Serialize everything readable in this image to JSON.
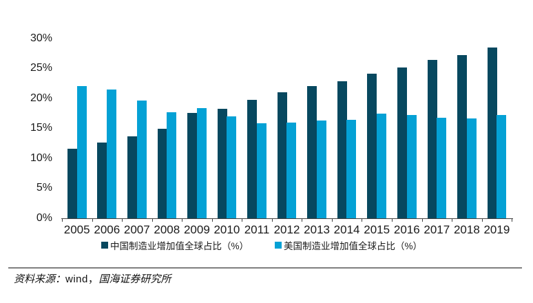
{
  "chart_data": {
    "type": "bar",
    "title": "",
    "categories": [
      "2005",
      "2006",
      "2007",
      "2008",
      "2009",
      "2010",
      "2011",
      "2012",
      "2013",
      "2014",
      "2015",
      "2016",
      "2017",
      "2018",
      "2019"
    ],
    "series": [
      {
        "name": "中国制造业增加值全球占比（%）",
        "color": "#07485f",
        "values": [
          11.6,
          12.6,
          13.7,
          14.9,
          17.6,
          18.3,
          19.7,
          21.0,
          22.0,
          22.9,
          24.1,
          25.2,
          26.4,
          27.2,
          28.5
        ]
      },
      {
        "name": "美国制造业增加值全球占比（%）",
        "color": "#04a1d5",
        "values": [
          22.0,
          21.5,
          19.6,
          17.7,
          18.4,
          17.0,
          15.9,
          16.0,
          16.3,
          16.4,
          17.5,
          17.2,
          16.8,
          16.6,
          17.2
        ]
      }
    ],
    "ylim": [
      0,
      30
    ],
    "ytick_labels": [
      "0%",
      "5%",
      "10%",
      "15%",
      "20%",
      "25%",
      "30%"
    ],
    "xlabel": "",
    "ylabel": "",
    "grid": false,
    "legend_position": "bottom"
  },
  "footer": {
    "source_prefix": "资料来源：",
    "source_vendor": "wind，",
    "source_org": "国海证券研究所"
  },
  "colors": {
    "china_bar": "#07485f",
    "us_bar": "#04a1d5",
    "axis": "#404040",
    "text": "#1a1a1a",
    "divider": "#7f7f7f",
    "background": "#ffffff"
  }
}
